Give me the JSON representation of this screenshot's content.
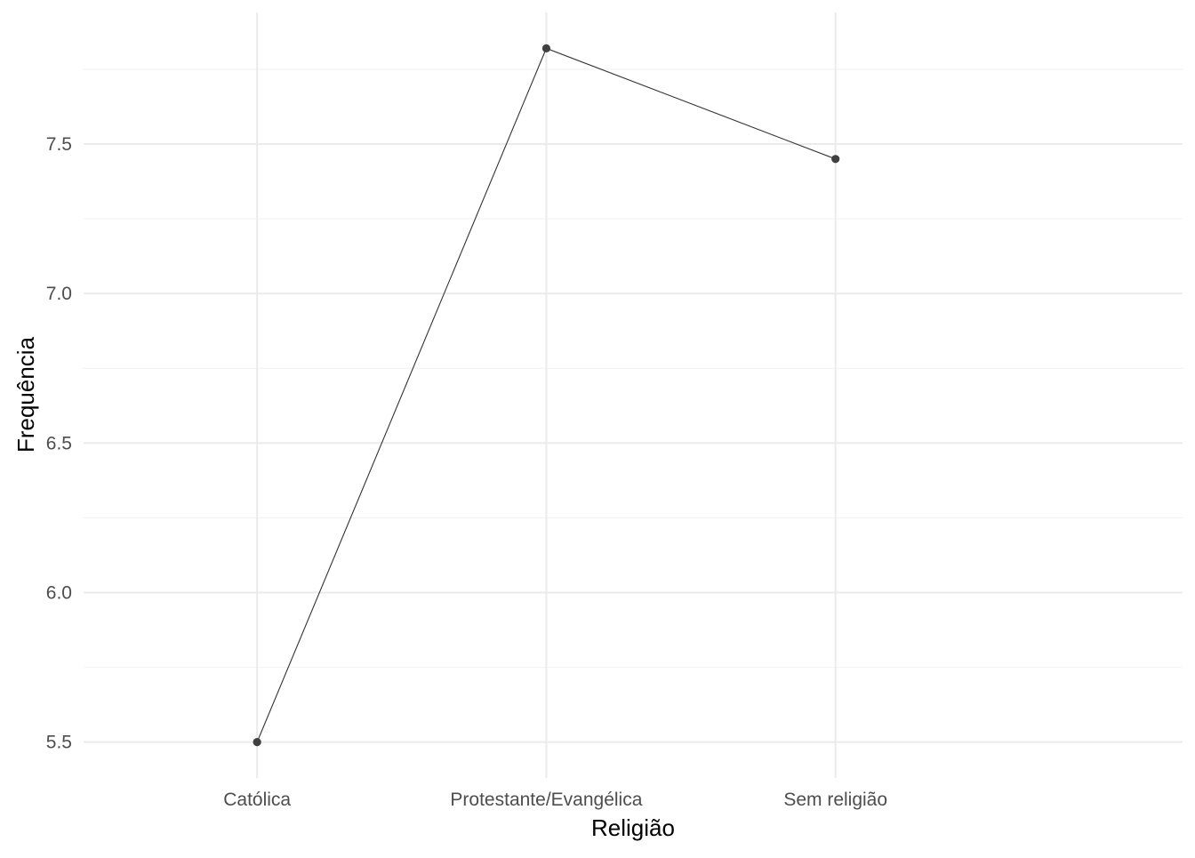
{
  "chart_data": {
    "type": "line",
    "title": "",
    "xlabel": "Religião",
    "ylabel": "Frequência",
    "categories": [
      "Católica",
      "Protestante/Evangélica",
      "Sem religião"
    ],
    "series": [
      {
        "values": [
          5.5,
          7.82,
          7.45
        ]
      }
    ],
    "ylim": [
      5.38,
      7.94
    ],
    "yticks": [
      "5.5",
      "6.0",
      "6.5",
      "7.0",
      "7.5"
    ],
    "grid": true,
    "legend": "none",
    "colors": {
      "line": "#333333",
      "point": "#404040",
      "grid_major": "#ebebeb",
      "grid_minor": "#f3f3f3",
      "tick_text": "#4d4d4d",
      "title_text": "#000000"
    }
  }
}
